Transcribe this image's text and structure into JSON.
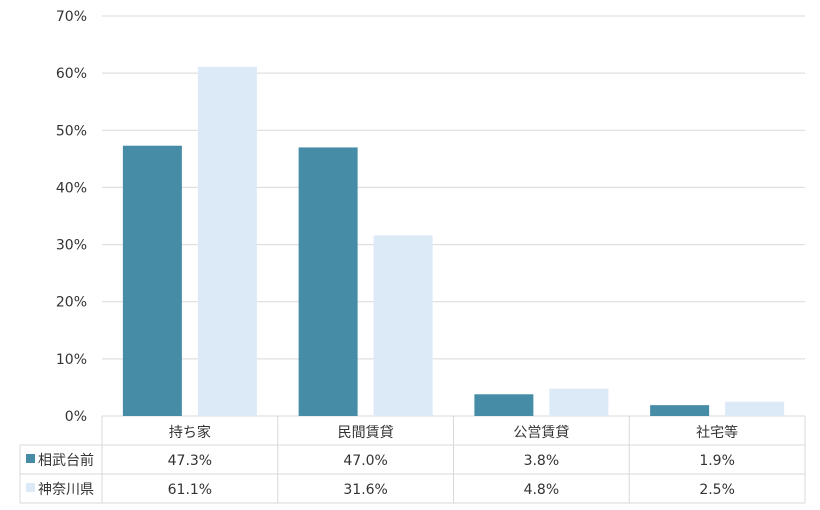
{
  "chart_data": {
    "type": "bar",
    "categories": [
      "持ち家",
      "民間賃貸",
      "公営賃貸",
      "社宅等"
    ],
    "series": [
      {
        "name": "相武台前",
        "values": [
          47.3,
          47.0,
          3.8,
          1.9
        ],
        "labels": [
          "47.3%",
          "47.0%",
          "3.8%",
          "1.9%"
        ],
        "color": "#468ca6"
      },
      {
        "name": "神奈川県",
        "values": [
          61.1,
          31.6,
          4.8,
          2.5
        ],
        "labels": [
          "61.1%",
          "31.6%",
          "4.8%",
          "2.5%"
        ],
        "color": "#dce9f6"
      }
    ],
    "ylim": [
      0,
      70
    ],
    "yticks": [
      "0%",
      "10%",
      "20%",
      "30%",
      "40%",
      "50%",
      "60%",
      "70%"
    ],
    "grid": true,
    "legend": "data-table"
  }
}
